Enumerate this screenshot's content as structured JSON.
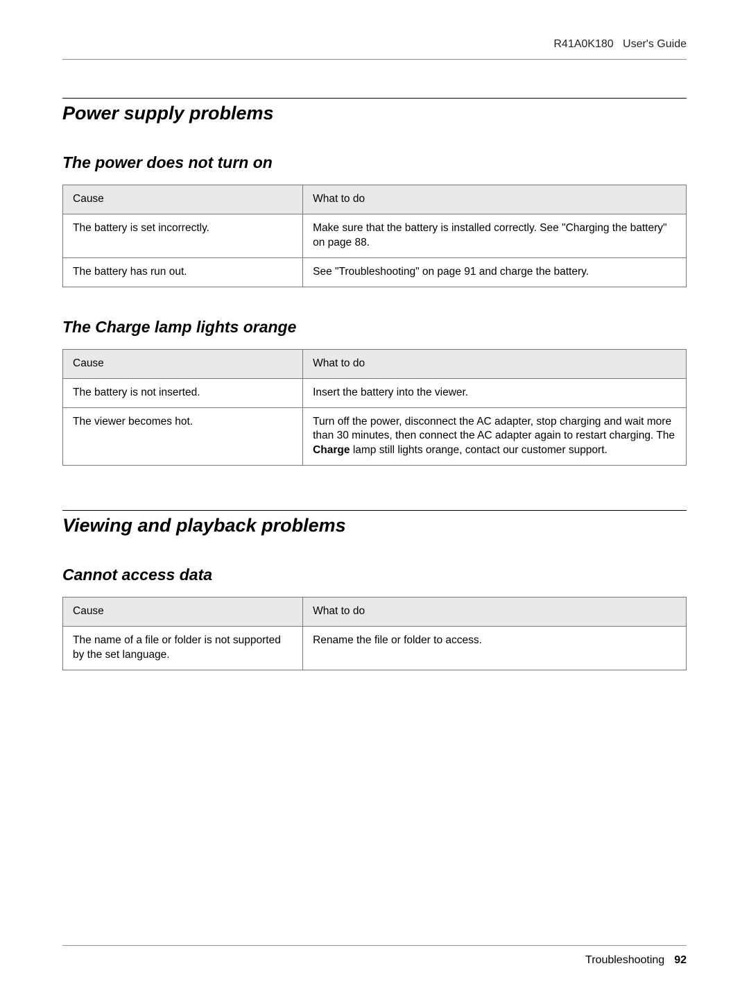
{
  "header": {
    "product_code": "R41A0K180",
    "doc_title": "User's Guide"
  },
  "sections": [
    {
      "title": "Power supply problems",
      "subsections": [
        {
          "title": "The power does not turn on",
          "table": {
            "head": {
              "cause": "Cause",
              "what": "What to do"
            },
            "rows": [
              {
                "cause": "The battery is set incorrectly.",
                "what": "Make sure that the battery is installed correctly. See \"Charging the battery\" on page 88."
              },
              {
                "cause": "The battery has run out.",
                "what": "See \"Troubleshooting\" on page 91 and charge the battery."
              }
            ]
          }
        },
        {
          "title": "The Charge lamp lights orange",
          "table": {
            "head": {
              "cause": "Cause",
              "what": "What to do"
            },
            "rows": [
              {
                "cause": "The battery is not inserted.",
                "what": "Insert the battery into the viewer."
              },
              {
                "cause": "The viewer becomes hot.",
                "what_pre": "Turn off the power, disconnect the AC adapter, stop charging and wait more than 30 minutes, then connect the AC adapter again to restart charging. The ",
                "what_bold": "Charge",
                "what_post": " lamp still lights orange, contact our customer support."
              }
            ]
          }
        }
      ]
    },
    {
      "title": "Viewing and playback problems",
      "subsections": [
        {
          "title": "Cannot access data",
          "table": {
            "head": {
              "cause": "Cause",
              "what": "What to do"
            },
            "rows": [
              {
                "cause": "The name of a file or folder is not supported by the set language.",
                "what": "Rename the file or folder to access."
              }
            ]
          }
        }
      ]
    }
  ],
  "footer": {
    "chapter": "Troubleshooting",
    "page": "92"
  }
}
